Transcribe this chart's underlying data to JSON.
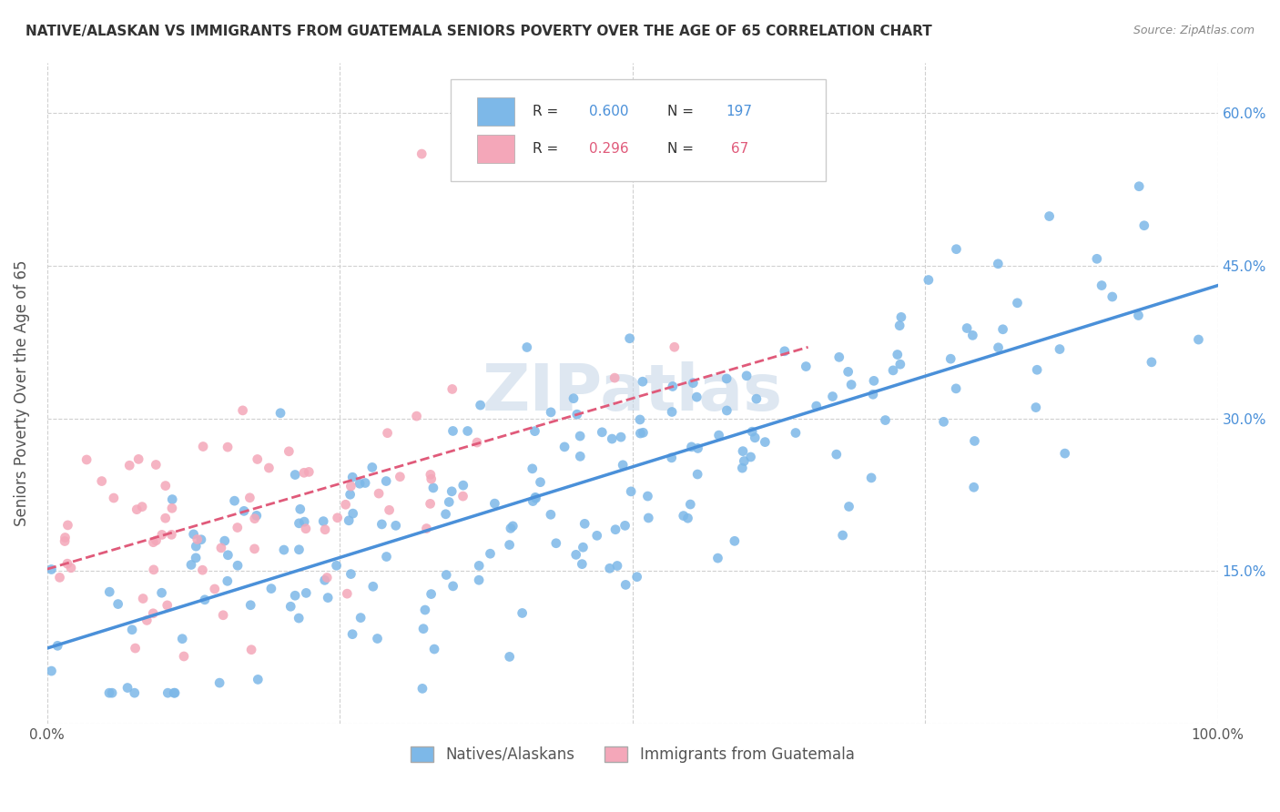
{
  "title": "NATIVE/ALASKAN VS IMMIGRANTS FROM GUATEMALA SENIORS POVERTY OVER THE AGE OF 65 CORRELATION CHART",
  "source": "Source: ZipAtlas.com",
  "ylabel": "Seniors Poverty Over the Age of 65",
  "legend_label_1": "Natives/Alaskans",
  "legend_label_2": "Immigrants from Guatemala",
  "R1": 0.6,
  "N1": 197,
  "R2": 0.296,
  "N2": 67,
  "xlim": [
    0,
    1.0
  ],
  "ylim": [
    0,
    0.65
  ],
  "xticks": [
    0.0,
    0.25,
    0.5,
    0.75,
    1.0
  ],
  "xticklabels": [
    "0.0%",
    "",
    "",
    "",
    "100.0%"
  ],
  "yticks": [
    0.0,
    0.15,
    0.3,
    0.45,
    0.6
  ],
  "yticklabels": [
    "",
    "15.0%",
    "30.0%",
    "45.0%",
    "60.0%"
  ],
  "color_blue": "#7db8e8",
  "color_pink": "#f4a7b9",
  "color_blue_line": "#4a90d9",
  "color_pink_line": "#e05a7a",
  "color_blue_text": "#4a90d9",
  "color_pink_text": "#e05a7a",
  "background_color": "#ffffff",
  "grid_color": "#d0d0d0",
  "watermark": "ZIPatlas",
  "watermark_color": "#c8d8e8",
  "figsize": [
    14.06,
    8.92
  ],
  "dpi": 100,
  "seed_blue": 42,
  "seed_pink": 7
}
